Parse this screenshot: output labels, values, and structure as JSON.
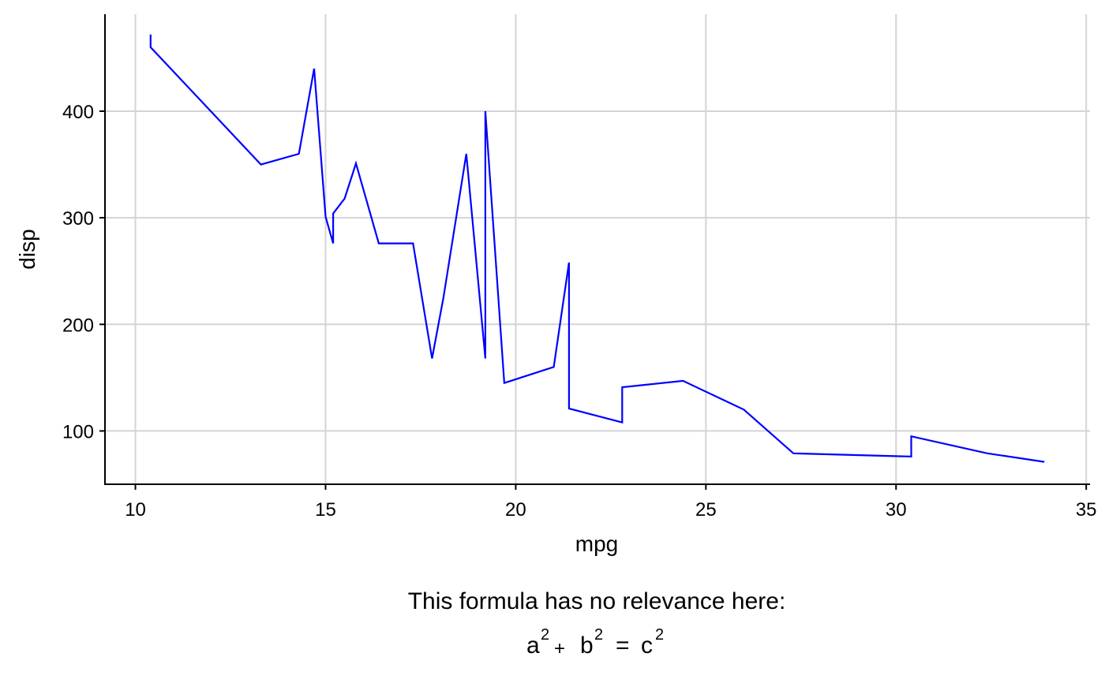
{
  "chart_data": {
    "type": "line",
    "xlabel": "mpg",
    "ylabel": "disp",
    "xlim": [
      9.2,
      35.1
    ],
    "ylim": [
      50,
      491
    ],
    "xticks": [
      10,
      15,
      20,
      25,
      30,
      35
    ],
    "yticks": [
      100,
      200,
      300,
      400
    ],
    "grid": true,
    "colors": {
      "line": "#0000ff",
      "grid": "#d4d4d4",
      "axis": "#000000"
    },
    "caption": {
      "line1": "This formula has no relevance here:",
      "formula": {
        "a": "a",
        "b": "b",
        "c": "c",
        "exponent": "2",
        "plus": "+",
        "equals": "="
      }
    },
    "series": [
      {
        "x": [
          10.4,
          10.4,
          13.3,
          14.3,
          14.7,
          15.0,
          15.2,
          15.2,
          15.5,
          15.8,
          16.4,
          17.3,
          17.8,
          18.1,
          18.7,
          19.2,
          19.2,
          19.7,
          21.0,
          21.4,
          21.4,
          22.8,
          22.8,
          24.4,
          26.0,
          27.3,
          30.4,
          30.4,
          32.4,
          33.9
        ],
        "y": [
          472,
          460,
          350,
          360,
          440,
          301,
          276,
          304,
          318,
          351,
          276,
          276,
          168,
          225,
          360,
          168,
          400,
          145,
          160,
          258,
          121,
          108,
          141,
          147,
          120,
          79,
          76,
          95,
          79,
          71
        ]
      }
    ]
  }
}
